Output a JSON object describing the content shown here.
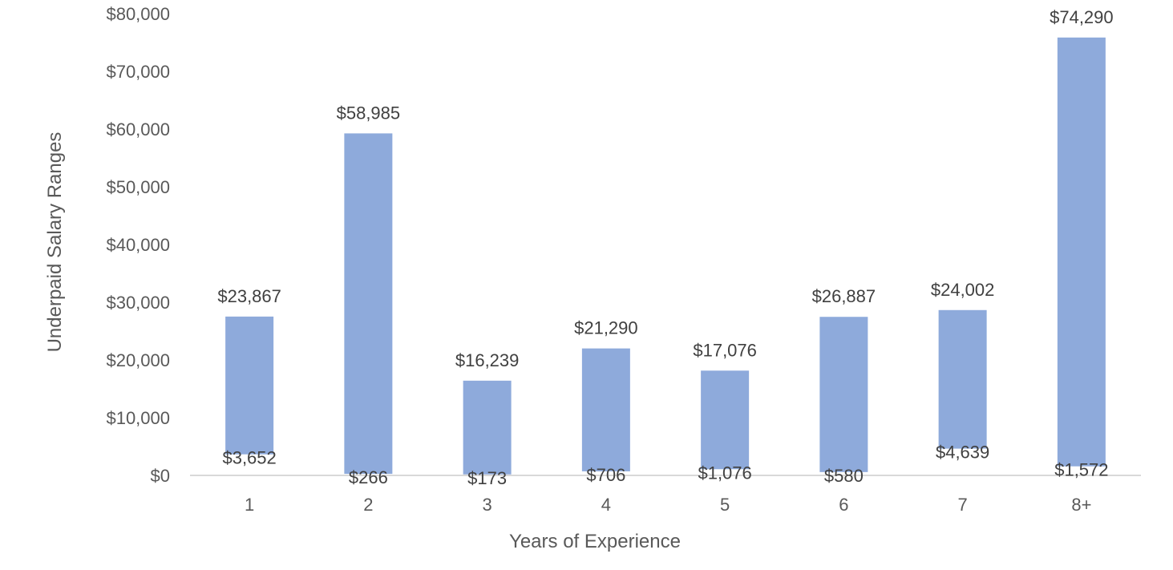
{
  "colors": {
    "bar": "#8eaadb",
    "axis": "#d9d9d9",
    "text": "#595959",
    "label": "#404040"
  },
  "chart_data": {
    "type": "bar",
    "subtype": "floating-range",
    "xlabel": "Years of Experience",
    "ylabel": "Underpaid Salary Ranges",
    "ylim": [
      0,
      80000
    ],
    "ytick_step": 10000,
    "yticks": [
      "$0",
      "$10,000",
      "$20,000",
      "$30,000",
      "$40,000",
      "$50,000",
      "$60,000",
      "$70,000",
      "$80,000"
    ],
    "grid": false,
    "legend": "none",
    "categories": [
      "1",
      "2",
      "3",
      "4",
      "5",
      "6",
      "7",
      "8+"
    ],
    "series": [
      {
        "name": "",
        "low": [
          3652,
          266,
          173,
          706,
          1076,
          580,
          4639,
          1572
        ],
        "high": [
          27519,
          59251,
          16412,
          21996,
          18152,
          27467,
          28641,
          75862
        ]
      }
    ],
    "data_labels": {
      "top": [
        "$23,867",
        "$58,985",
        "$16,239",
        "$21,290",
        "$17,076",
        "$26,887",
        "$24,002",
        "$74,290"
      ],
      "bottom": [
        "$3,652",
        "$266",
        "$173",
        "$706",
        "$1,076",
        "$580",
        "$4,639",
        "$1,572"
      ]
    }
  }
}
